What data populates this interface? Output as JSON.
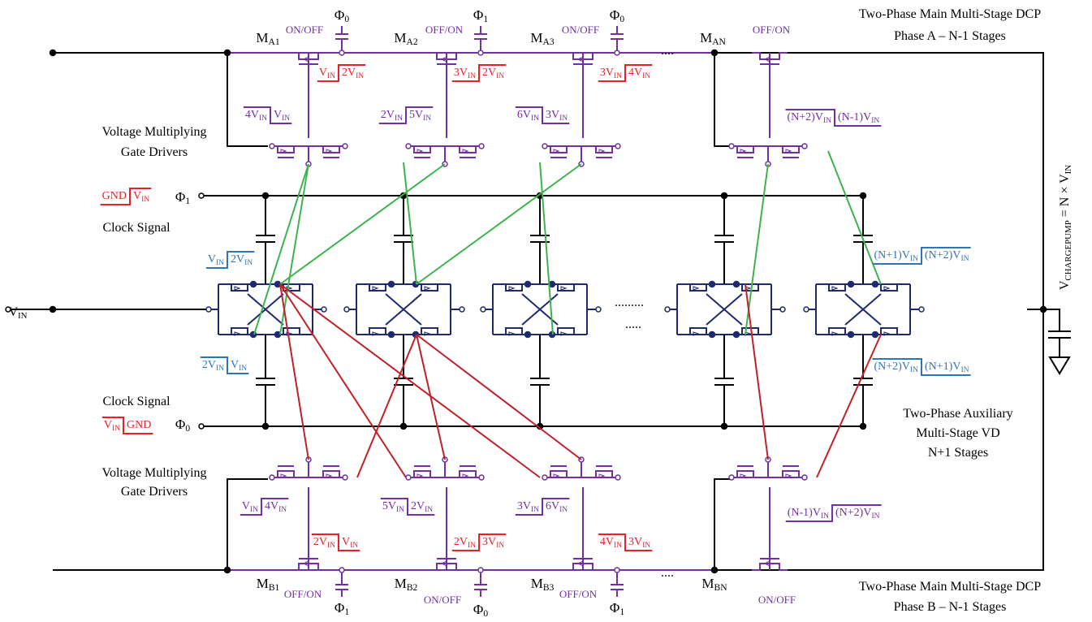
{
  "labels": [
    {
      "parts": [
        {
          "t": "Two-Phase Main Multi-Stage DCP"
        }
      ]
    },
    {
      "parts": [
        {
          "t": "Phase A – N-1 Stages"
        }
      ]
    },
    {
      "parts": [
        {
          "t": "M"
        },
        {
          "s": "A1"
        }
      ]
    },
    {
      "parts": [
        {
          "t": "M"
        },
        {
          "s": "A2"
        }
      ]
    },
    {
      "parts": [
        {
          "t": "M"
        },
        {
          "s": "A3"
        }
      ]
    },
    {
      "parts": [
        {
          "t": "M"
        },
        {
          "s": "AN"
        }
      ]
    },
    {
      "parts": [
        {
          "t": "ON/OFF"
        }
      ]
    },
    {
      "parts": [
        {
          "t": "OFF/ON"
        }
      ]
    },
    {
      "parts": [
        {
          "t": "ON/OFF"
        }
      ]
    },
    {
      "parts": [
        {
          "t": "OFF/ON"
        }
      ]
    },
    {
      "parts": [
        {
          "t": "Φ"
        },
        {
          "s": "0"
        }
      ]
    },
    {
      "parts": [
        {
          "t": "Φ"
        },
        {
          "s": "1"
        }
      ]
    },
    {
      "parts": [
        {
          "t": "Φ"
        },
        {
          "s": "0"
        }
      ]
    },
    {
      "parts": [
        {
          "t": "...."
        }
      ]
    },
    {
      "left": [
        {
          "t": "V"
        },
        {
          "s": "IN"
        }
      ],
      "right": [
        {
          "t": "2V"
        },
        {
          "s": "IN"
        }
      ]
    },
    {
      "left": [
        {
          "t": "3V"
        },
        {
          "s": "IN"
        }
      ],
      "right": [
        {
          "t": "2V"
        },
        {
          "s": "IN"
        }
      ]
    },
    {
      "left": [
        {
          "t": "3V"
        },
        {
          "s": "IN"
        }
      ],
      "right": [
        {
          "t": "4V"
        },
        {
          "s": "IN"
        }
      ]
    },
    {
      "left": [
        {
          "t": "4V"
        },
        {
          "s": "IN"
        }
      ],
      "right": [
        {
          "t": "V"
        },
        {
          "s": "IN"
        }
      ]
    },
    {
      "left": [
        {
          "t": "2V"
        },
        {
          "s": "IN"
        }
      ],
      "right": [
        {
          "t": "5V"
        },
        {
          "s": "IN"
        }
      ]
    },
    {
      "left": [
        {
          "t": "6V"
        },
        {
          "s": "IN"
        }
      ],
      "right": [
        {
          "t": "3V"
        },
        {
          "s": "IN"
        }
      ]
    },
    {
      "left": [
        {
          "t": "(N+2)V"
        },
        {
          "s": "IN"
        }
      ],
      "right": [
        {
          "t": "(N-1)V"
        },
        {
          "s": "IN"
        }
      ]
    },
    {
      "parts": [
        {
          "t": "Voltage Multiplying"
        }
      ]
    },
    {
      "parts": [
        {
          "t": "Gate Drivers"
        }
      ]
    },
    {
      "left": [
        {
          "t": "GND"
        }
      ],
      "right": [
        {
          "t": "V"
        },
        {
          "s": "IN"
        }
      ]
    },
    {
      "parts": [
        {
          "t": "Φ"
        },
        {
          "s": "1"
        }
      ]
    },
    {
      "parts": [
        {
          "t": "Clock Signal"
        }
      ]
    },
    {
      "left": [
        {
          "t": "V"
        },
        {
          "s": "IN"
        }
      ],
      "right": [
        {
          "t": "2V"
        },
        {
          "s": "IN"
        }
      ]
    },
    {
      "left": [
        {
          "t": "(N+1)V"
        },
        {
          "s": "IN"
        }
      ],
      "right": [
        {
          "t": "(N+2)V"
        },
        {
          "s": "IN"
        }
      ]
    },
    {
      "parts": [
        {
          "t": "V"
        },
        {
          "s": "IN"
        }
      ]
    },
    {
      "parts": [
        {
          "t": "........."
        }
      ]
    },
    {
      "parts": [
        {
          "t": "....."
        }
      ]
    },
    {
      "left": [
        {
          "t": "2V"
        },
        {
          "s": "IN"
        }
      ],
      "right": [
        {
          "t": "V"
        },
        {
          "s": "IN"
        }
      ]
    },
    {
      "left": [
        {
          "t": "(N+2)V"
        },
        {
          "s": "IN"
        }
      ],
      "right": [
        {
          "t": "(N+1)V"
        },
        {
          "s": "IN"
        }
      ]
    },
    {
      "parts": [
        {
          "t": "V"
        },
        {
          "s": "CHARGEPUMP"
        },
        {
          "t": " = N × V"
        },
        {
          "s": "IN"
        }
      ]
    },
    {
      "parts": [
        {
          "t": "Clock Signal"
        }
      ]
    },
    {
      "left": [
        {
          "t": "V"
        },
        {
          "s": "IN"
        }
      ],
      "right": [
        {
          "t": "GND"
        }
      ]
    },
    {
      "parts": [
        {
          "t": "Φ"
        },
        {
          "s": "0"
        }
      ]
    },
    {
      "parts": [
        {
          "t": "Two-Phase Auxiliary"
        }
      ]
    },
    {
      "parts": [
        {
          "t": "Multi-Stage VD"
        }
      ]
    },
    {
      "parts": [
        {
          "t": "N+1 Stages"
        }
      ]
    },
    {
      "parts": [
        {
          "t": "Voltage Multiplying"
        }
      ]
    },
    {
      "parts": [
        {
          "t": "Gate Drivers"
        }
      ]
    },
    {
      "left": [
        {
          "t": "V"
        },
        {
          "s": "IN"
        }
      ],
      "right": [
        {
          "t": "4V"
        },
        {
          "s": "IN"
        }
      ]
    },
    {
      "left": [
        {
          "t": "5V"
        },
        {
          "s": "IN"
        }
      ],
      "right": [
        {
          "t": "2V"
        },
        {
          "s": "IN"
        }
      ]
    },
    {
      "left": [
        {
          "t": "3V"
        },
        {
          "s": "IN"
        }
      ],
      "right": [
        {
          "t": "6V"
        },
        {
          "s": "IN"
        }
      ]
    },
    {
      "left": [
        {
          "t": "(N-1)V"
        },
        {
          "s": "IN"
        }
      ],
      "right": [
        {
          "t": "(N+2)V"
        },
        {
          "s": "IN"
        }
      ]
    },
    {
      "left": [
        {
          "t": "2V"
        },
        {
          "s": "IN"
        }
      ],
      "right": [
        {
          "t": "V"
        },
        {
          "s": "IN"
        }
      ]
    },
    {
      "left": [
        {
          "t": "2V"
        },
        {
          "s": "IN"
        }
      ],
      "right": [
        {
          "t": "3V"
        },
        {
          "s": "IN"
        }
      ]
    },
    {
      "left": [
        {
          "t": "4V"
        },
        {
          "s": "IN"
        }
      ],
      "right": [
        {
          "t": "3V"
        },
        {
          "s": "IN"
        }
      ]
    },
    {
      "parts": [
        {
          "t": "M"
        },
        {
          "s": "B1"
        }
      ]
    },
    {
      "parts": [
        {
          "t": "M"
        },
        {
          "s": "B2"
        }
      ]
    },
    {
      "parts": [
        {
          "t": "M"
        },
        {
          "s": "B3"
        }
      ]
    },
    {
      "parts": [
        {
          "t": "M"
        },
        {
          "s": "BN"
        }
      ]
    },
    {
      "parts": [
        {
          "t": "OFF/ON"
        }
      ]
    },
    {
      "parts": [
        {
          "t": "ON/OFF"
        }
      ]
    },
    {
      "parts": [
        {
          "t": "OFF/ON"
        }
      ]
    },
    {
      "parts": [
        {
          "t": "ON/OFF"
        }
      ]
    },
    {
      "parts": [
        {
          "t": "Φ"
        },
        {
          "s": "1"
        }
      ]
    },
    {
      "parts": [
        {
          "t": "Φ"
        },
        {
          "s": "0"
        }
      ]
    },
    {
      "parts": [
        {
          "t": "Φ"
        },
        {
          "s": "1"
        }
      ]
    },
    {
      "parts": [
        {
          "t": "...."
        }
      ]
    },
    {
      "parts": [
        {
          "t": "Two-Phase Main Multi-Stage DCP"
        }
      ]
    },
    {
      "parts": [
        {
          "t": "Phase B – N-1 Stages"
        }
      ]
    }
  ]
}
